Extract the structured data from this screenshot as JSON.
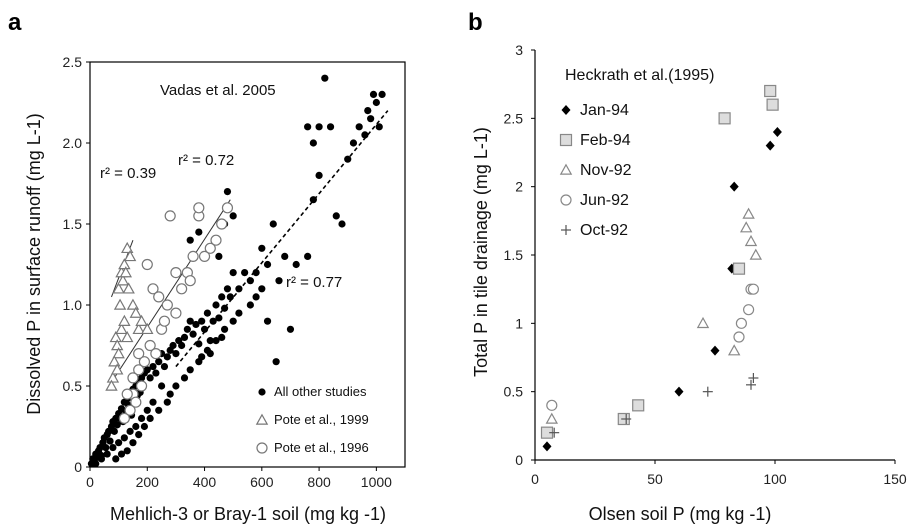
{
  "chart_data": [
    {
      "panel": "a",
      "type": "scatter",
      "title": "",
      "annotation": "Vadas et al. 2005",
      "xlabel": "Mehlich-3 or Bray-1 soil (mg kg -1)",
      "ylabel": "Dissolved P in surface runoff (mg L-1)",
      "xlim": [
        0,
        1100
      ],
      "ylim": [
        0,
        2.5
      ],
      "xticks": [
        0,
        200,
        400,
        600,
        800,
        1000
      ],
      "yticks": [
        "0",
        "0.5",
        "1.0",
        "1.5",
        "2.0",
        "2.5"
      ],
      "grid": false,
      "legend_position": "bottom-right",
      "series": [
        {
          "name": "All other studies",
          "marker": "filled-circle",
          "color": "#000000",
          "points": [
            [
              5,
              0.02
            ],
            [
              10,
              0.05
            ],
            [
              15,
              0.03
            ],
            [
              20,
              0.08
            ],
            [
              25,
              0.06
            ],
            [
              30,
              0.1
            ],
            [
              35,
              0.12
            ],
            [
              40,
              0.07
            ],
            [
              45,
              0.15
            ],
            [
              50,
              0.18
            ],
            [
              55,
              0.12
            ],
            [
              60,
              0.2
            ],
            [
              65,
              0.22
            ],
            [
              70,
              0.16
            ],
            [
              75,
              0.25
            ],
            [
              80,
              0.28
            ],
            [
              85,
              0.22
            ],
            [
              90,
              0.3
            ],
            [
              95,
              0.26
            ],
            [
              100,
              0.33
            ],
            [
              105,
              0.3
            ],
            [
              110,
              0.36
            ],
            [
              115,
              0.28
            ],
            [
              120,
              0.4
            ],
            [
              125,
              0.34
            ],
            [
              130,
              0.42
            ],
            [
              135,
              0.38
            ],
            [
              140,
              0.45
            ],
            [
              145,
              0.32
            ],
            [
              150,
              0.48
            ],
            [
              155,
              0.4
            ],
            [
              160,
              0.5
            ],
            [
              165,
              0.44
            ],
            [
              170,
              0.52
            ],
            [
              175,
              0.46
            ],
            [
              180,
              0.55
            ],
            [
              185,
              0.5
            ],
            [
              190,
              0.58
            ],
            [
              200,
              0.6
            ],
            [
              210,
              0.55
            ],
            [
              220,
              0.62
            ],
            [
              230,
              0.58
            ],
            [
              240,
              0.65
            ],
            [
              250,
              0.7
            ],
            [
              260,
              0.62
            ],
            [
              270,
              0.68
            ],
            [
              280,
              0.72
            ],
            [
              290,
              0.75
            ],
            [
              300,
              0.7
            ],
            [
              310,
              0.78
            ],
            [
              320,
              0.75
            ],
            [
              330,
              0.8
            ],
            [
              340,
              0.85
            ],
            [
              350,
              0.9
            ],
            [
              360,
              0.82
            ],
            [
              370,
              0.88
            ],
            [
              380,
              0.76
            ],
            [
              390,
              0.9
            ],
            [
              400,
              0.85
            ],
            [
              410,
              0.95
            ],
            [
              420,
              0.78
            ],
            [
              430,
              0.9
            ],
            [
              440,
              1.0
            ],
            [
              450,
              0.92
            ],
            [
              460,
              1.05
            ],
            [
              470,
              0.98
            ],
            [
              480,
              1.1
            ],
            [
              490,
              1.05
            ],
            [
              500,
              1.2
            ],
            [
              520,
              1.1
            ],
            [
              540,
              1.2
            ],
            [
              560,
              1.15
            ],
            [
              580,
              1.2
            ],
            [
              600,
              1.35
            ],
            [
              620,
              0.9
            ],
            [
              650,
              0.65
            ],
            [
              620,
              1.25
            ],
            [
              640,
              1.5
            ],
            [
              660,
              1.15
            ],
            [
              680,
              1.3
            ],
            [
              700,
              0.85
            ],
            [
              720,
              1.25
            ],
            [
              760,
              1.3
            ],
            [
              780,
              1.65
            ],
            [
              800,
              1.8
            ],
            [
              820,
              2.4
            ],
            [
              840,
              2.1
            ],
            [
              860,
              1.55
            ],
            [
              880,
              1.5
            ],
            [
              760,
              2.1
            ],
            [
              780,
              2.0
            ],
            [
              800,
              2.1
            ],
            [
              900,
              1.9
            ],
            [
              920,
              2.0
            ],
            [
              940,
              2.1
            ],
            [
              960,
              2.05
            ],
            [
              970,
              2.2
            ],
            [
              980,
              2.15
            ],
            [
              990,
              2.3
            ],
            [
              1000,
              2.25
            ],
            [
              1010,
              2.1
            ],
            [
              1020,
              2.3
            ],
            [
              420,
              0.7
            ],
            [
              380,
              0.65
            ],
            [
              460,
              0.8
            ],
            [
              300,
              0.5
            ],
            [
              280,
              0.45
            ],
            [
              250,
              0.5
            ],
            [
              220,
              0.4
            ],
            [
              200,
              0.35
            ],
            [
              180,
              0.3
            ],
            [
              160,
              0.25
            ],
            [
              140,
              0.22
            ],
            [
              120,
              0.18
            ],
            [
              100,
              0.15
            ],
            [
              80,
              0.12
            ],
            [
              60,
              0.08
            ],
            [
              40,
              0.05
            ],
            [
              20,
              0.02
            ],
            [
              130,
              0.1
            ],
            [
              110,
              0.08
            ],
            [
              90,
              0.05
            ],
            [
              150,
              0.15
            ],
            [
              170,
              0.2
            ],
            [
              190,
              0.25
            ],
            [
              210,
              0.3
            ],
            [
              240,
              0.35
            ],
            [
              270,
              0.4
            ],
            [
              330,
              0.55
            ],
            [
              350,
              0.6
            ],
            [
              390,
              0.68
            ],
            [
              410,
              0.72
            ],
            [
              440,
              0.78
            ],
            [
              470,
              0.85
            ],
            [
              500,
              0.9
            ],
            [
              520,
              0.95
            ],
            [
              560,
              1.0
            ],
            [
              580,
              1.05
            ],
            [
              600,
              1.1
            ],
            [
              450,
              1.3
            ],
            [
              470,
              1.5
            ],
            [
              480,
              1.7
            ],
            [
              500,
              1.55
            ],
            [
              380,
              1.45
            ],
            [
              350,
              1.4
            ]
          ]
        },
        {
          "name": "Pote et al., 1999",
          "marker": "open-triangle",
          "color": "#777777",
          "points": [
            [
              100,
              1.1
            ],
            [
              110,
              1.2
            ],
            [
              120,
              1.25
            ],
            [
              130,
              1.35
            ],
            [
              140,
              1.3
            ],
            [
              105,
              1.0
            ],
            [
              115,
              1.15
            ],
            [
              125,
              1.2
            ],
            [
              135,
              1.1
            ],
            [
              90,
              0.8
            ],
            [
              95,
              0.75
            ],
            [
              100,
              0.7
            ],
            [
              85,
              0.65
            ],
            [
              110,
              0.85
            ],
            [
              120,
              0.9
            ],
            [
              130,
              0.8
            ],
            [
              80,
              0.55
            ],
            [
              75,
              0.5
            ],
            [
              95,
              0.6
            ],
            [
              150,
              1.0
            ],
            [
              160,
              0.95
            ],
            [
              170,
              0.85
            ],
            [
              180,
              0.9
            ],
            [
              200,
              0.85
            ]
          ]
        },
        {
          "name": "Pote et al., 1996",
          "marker": "open-circle",
          "color": "#777777",
          "points": [
            [
              150,
              0.45
            ],
            [
              170,
              0.6
            ],
            [
              190,
              0.65
            ],
            [
              210,
              0.75
            ],
            [
              230,
              0.7
            ],
            [
              250,
              0.85
            ],
            [
              270,
              1.0
            ],
            [
              280,
              1.55
            ],
            [
              300,
              0.95
            ],
            [
              320,
              1.1
            ],
            [
              340,
              1.2
            ],
            [
              360,
              1.3
            ],
            [
              380,
              1.55
            ],
            [
              400,
              1.3
            ],
            [
              420,
              1.35
            ],
            [
              440,
              1.4
            ],
            [
              460,
              1.5
            ],
            [
              480,
              1.6
            ],
            [
              200,
              1.25
            ],
            [
              220,
              1.1
            ],
            [
              240,
              1.05
            ],
            [
              260,
              0.9
            ],
            [
              180,
              0.5
            ],
            [
              160,
              0.4
            ],
            [
              140,
              0.35
            ],
            [
              120,
              0.3
            ],
            [
              130,
              0.45
            ],
            [
              150,
              0.55
            ],
            [
              170,
              0.7
            ],
            [
              350,
              1.15
            ],
            [
              380,
              1.6
            ],
            [
              300,
              1.2
            ]
          ]
        }
      ],
      "fits": [
        {
          "label": "r² = 0.39",
          "r2": 0.39,
          "style": "solid",
          "from": [
            75,
            1.05
          ],
          "to": [
            150,
            1.4
          ]
        },
        {
          "label": "r² = 0.72",
          "r2": 0.72,
          "style": "solid",
          "from": [
            85,
            0.55
          ],
          "to": [
            490,
            1.65
          ]
        },
        {
          "label": "r² = 0.77",
          "r2": 0.77,
          "style": "dashed",
          "from": [
            300,
            0.62
          ],
          "to": [
            1040,
            2.2
          ]
        }
      ]
    },
    {
      "panel": "b",
      "type": "scatter",
      "title": "",
      "annotation": "Heckrath et al.(1995)",
      "xlabel": "Olsen soil P (mg kg -1)",
      "ylabel": "Total P in tile drainage (mg L-1)",
      "xlim": [
        0,
        150
      ],
      "ylim": [
        0,
        3
      ],
      "xticks": [
        0,
        50,
        100,
        150
      ],
      "yticks": [
        "0",
        "0.5",
        "1",
        "1.5",
        "2",
        "2.5",
        "3"
      ],
      "grid": false,
      "legend_position": "top-left",
      "series": [
        {
          "name": "Jan-94",
          "marker": "filled-diamond",
          "color": "#000000",
          "points": [
            [
              5,
              0.1
            ],
            [
              60,
              0.5
            ],
            [
              75,
              0.8
            ],
            [
              82,
              1.4
            ],
            [
              83,
              2.0
            ],
            [
              98,
              2.3
            ],
            [
              101,
              2.4
            ]
          ]
        },
        {
          "name": "Feb-94",
          "marker": "open-square",
          "color": "#888888",
          "points": [
            [
              5,
              0.2
            ],
            [
              37,
              0.3
            ],
            [
              43,
              0.4
            ],
            [
              79,
              2.5
            ],
            [
              85,
              1.4
            ],
            [
              98,
              2.7
            ],
            [
              99,
              2.6
            ]
          ]
        },
        {
          "name": "Nov-92",
          "marker": "open-triangle",
          "color": "#888888",
          "points": [
            [
              7,
              0.3
            ],
            [
              70,
              1.0
            ],
            [
              83,
              0.8
            ],
            [
              88,
              1.7
            ],
            [
              89,
              1.8
            ],
            [
              90,
              1.6
            ],
            [
              92,
              1.5
            ]
          ]
        },
        {
          "name": "Jun-92",
          "marker": "open-circle",
          "color": "#888888",
          "points": [
            [
              7,
              0.4
            ],
            [
              85,
              0.9
            ],
            [
              86,
              1.0
            ],
            [
              89,
              1.1
            ],
            [
              90,
              1.25
            ],
            [
              91,
              1.25
            ]
          ]
        },
        {
          "name": "Oct-92",
          "marker": "plus",
          "color": "#555555",
          "points": [
            [
              8,
              0.2
            ],
            [
              38,
              0.3
            ],
            [
              72,
              0.5
            ],
            [
              90,
              0.55
            ],
            [
              91,
              0.6
            ]
          ]
        }
      ]
    }
  ]
}
